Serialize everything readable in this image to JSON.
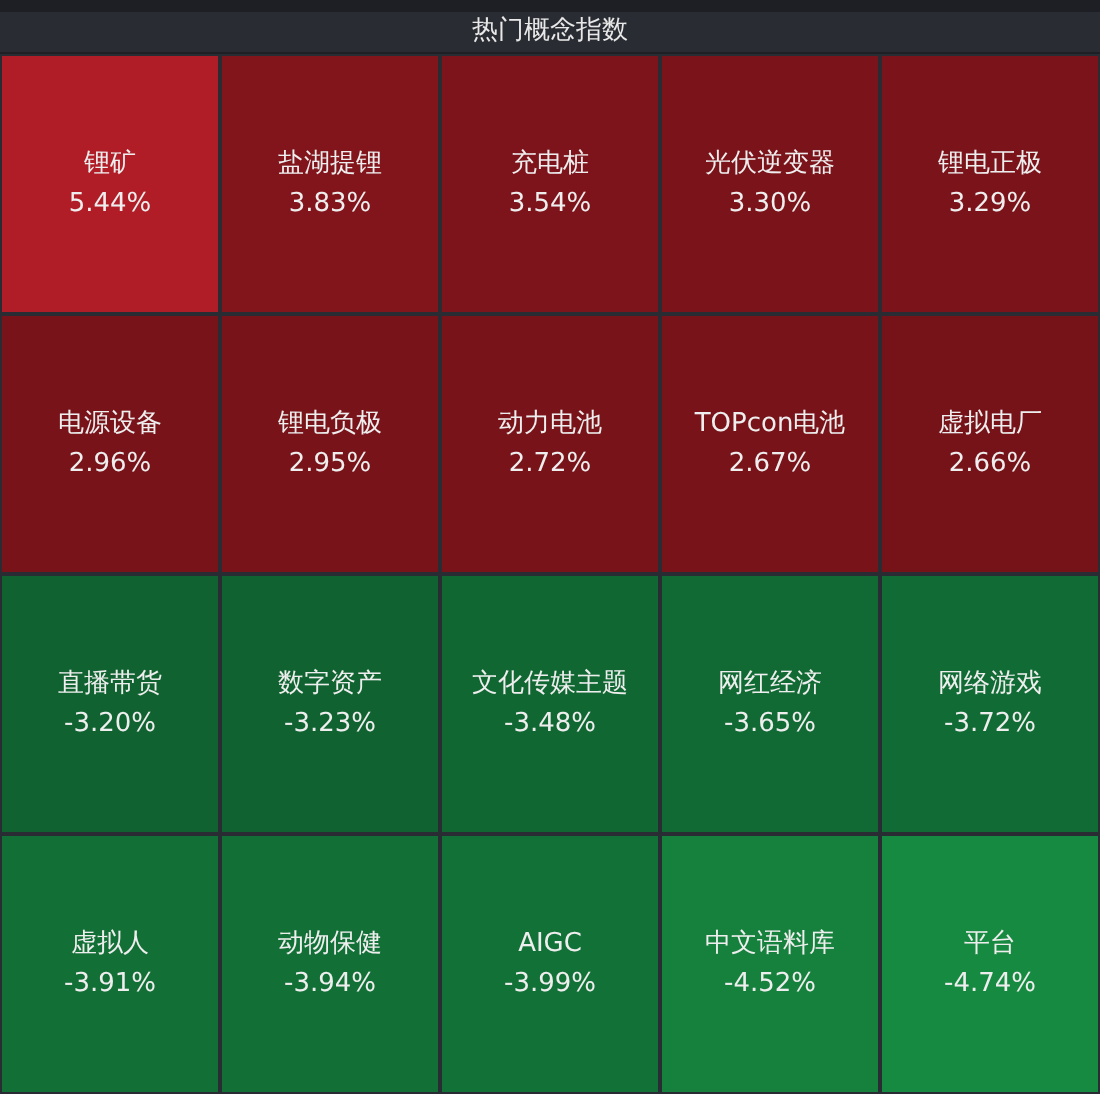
{
  "chart_data": {
    "type": "other",
    "title": "热门概念指数",
    "categories": [
      "锂矿",
      "盐湖提锂",
      "充电桩",
      "光伏逆变器",
      "锂电正极",
      "电源设备",
      "锂电负极",
      "动力电池",
      "TOPcon电池",
      "虚拟电厂",
      "直播带货",
      "数字资产",
      "文化传媒主题",
      "网红经济",
      "网络游戏",
      "虚拟人",
      "动物保健",
      "AIGC",
      "中文语料库",
      "平台"
    ],
    "values": [
      5.44,
      3.83,
      3.54,
      3.3,
      3.29,
      2.96,
      2.95,
      2.72,
      2.67,
      2.66,
      -3.2,
      -3.23,
      -3.48,
      -3.65,
      -3.72,
      -3.91,
      -3.94,
      -3.99,
      -4.52,
      -4.74
    ],
    "value_labels": [
      "5.44%",
      "3.83%",
      "3.54%",
      "3.30%",
      "3.29%",
      "2.96%",
      "2.95%",
      "2.72%",
      "2.67%",
      "2.66%",
      "-3.20%",
      "-3.23%",
      "-3.48%",
      "-3.65%",
      "-3.72%",
      "-3.91%",
      "-3.94%",
      "-3.99%",
      "-4.52%",
      "-4.74%"
    ]
  }
}
